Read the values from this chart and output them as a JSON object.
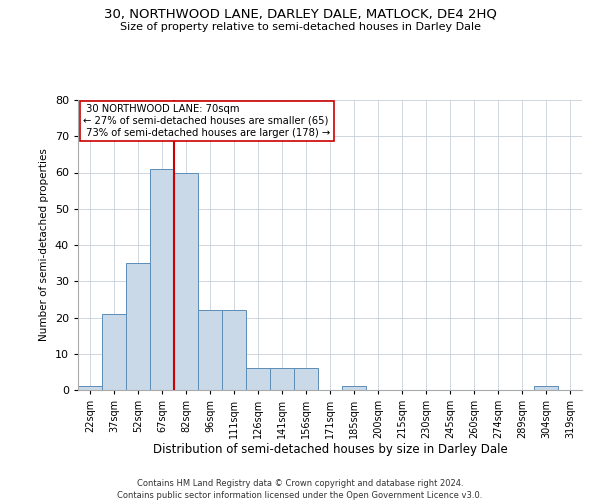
{
  "title": "30, NORTHWOOD LANE, DARLEY DALE, MATLOCK, DE4 2HQ",
  "subtitle": "Size of property relative to semi-detached houses in Darley Dale",
  "xlabel": "Distribution of semi-detached houses by size in Darley Dale",
  "ylabel": "Number of semi-detached properties",
  "footnote1": "Contains HM Land Registry data © Crown copyright and database right 2024.",
  "footnote2": "Contains public sector information licensed under the Open Government Licence v3.0.",
  "property_label": "30 NORTHWOOD LANE: 70sqm",
  "pct_smaller": 27,
  "pct_larger": 73,
  "count_smaller": 65,
  "count_larger": 178,
  "bar_color": "#c9d9e8",
  "bar_edge_color": "#5b8db8",
  "vline_color": "#cc0000",
  "annotation_box_edge": "#cc0000",
  "grid_color": "#c8d0dc",
  "background_color": "#ffffff",
  "categories": [
    "22sqm",
    "37sqm",
    "52sqm",
    "67sqm",
    "82sqm",
    "96sqm",
    "111sqm",
    "126sqm",
    "141sqm",
    "156sqm",
    "171sqm",
    "185sqm",
    "200sqm",
    "215sqm",
    "230sqm",
    "245sqm",
    "260sqm",
    "274sqm",
    "289sqm",
    "304sqm",
    "319sqm"
  ],
  "values": [
    1,
    21,
    35,
    61,
    60,
    22,
    22,
    6,
    6,
    6,
    0,
    1,
    0,
    0,
    0,
    0,
    0,
    0,
    0,
    1,
    0
  ],
  "ylim": [
    0,
    80
  ],
  "yticks": [
    0,
    10,
    20,
    30,
    40,
    50,
    60,
    70,
    80
  ],
  "vline_x": 3.5
}
